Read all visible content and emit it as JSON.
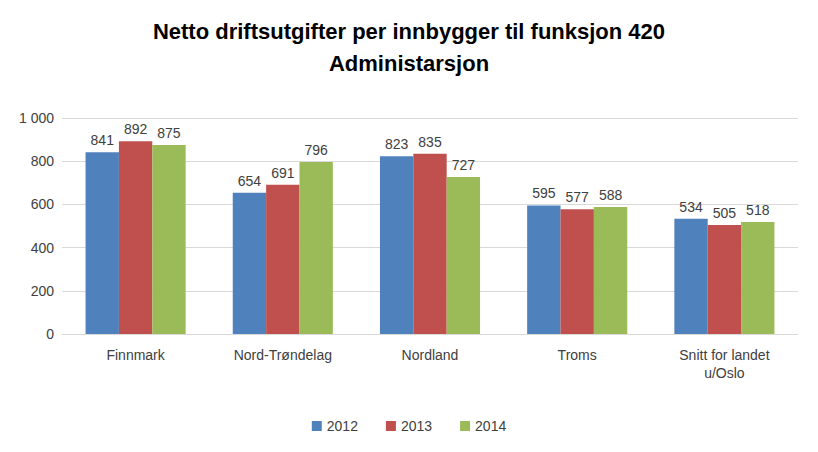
{
  "chart_data": {
    "type": "bar",
    "title": "Netto driftsutgifter per innbygger til funksjon 420\nAdministarsjon",
    "categories": [
      "Finnmark",
      "Nord-Trøndelag",
      "Nordland",
      "Troms",
      "Snitt for landet\nu/Oslo"
    ],
    "series": [
      {
        "name": "2012",
        "color": "#4f81bd",
        "values": [
          841,
          654,
          823,
          595,
          534
        ]
      },
      {
        "name": "2013",
        "color": "#c0504d",
        "values": [
          892,
          691,
          835,
          577,
          505
        ]
      },
      {
        "name": "2014",
        "color": "#9bbb59",
        "values": [
          875,
          796,
          727,
          588,
          518
        ]
      }
    ],
    "ylim": [
      0,
      1000
    ],
    "yticks": [
      0,
      200,
      400,
      600,
      800,
      {
        "value": 1000,
        "label": "1 000"
      }
    ],
    "grid": true,
    "data_labels": true,
    "legend": "bottom"
  }
}
